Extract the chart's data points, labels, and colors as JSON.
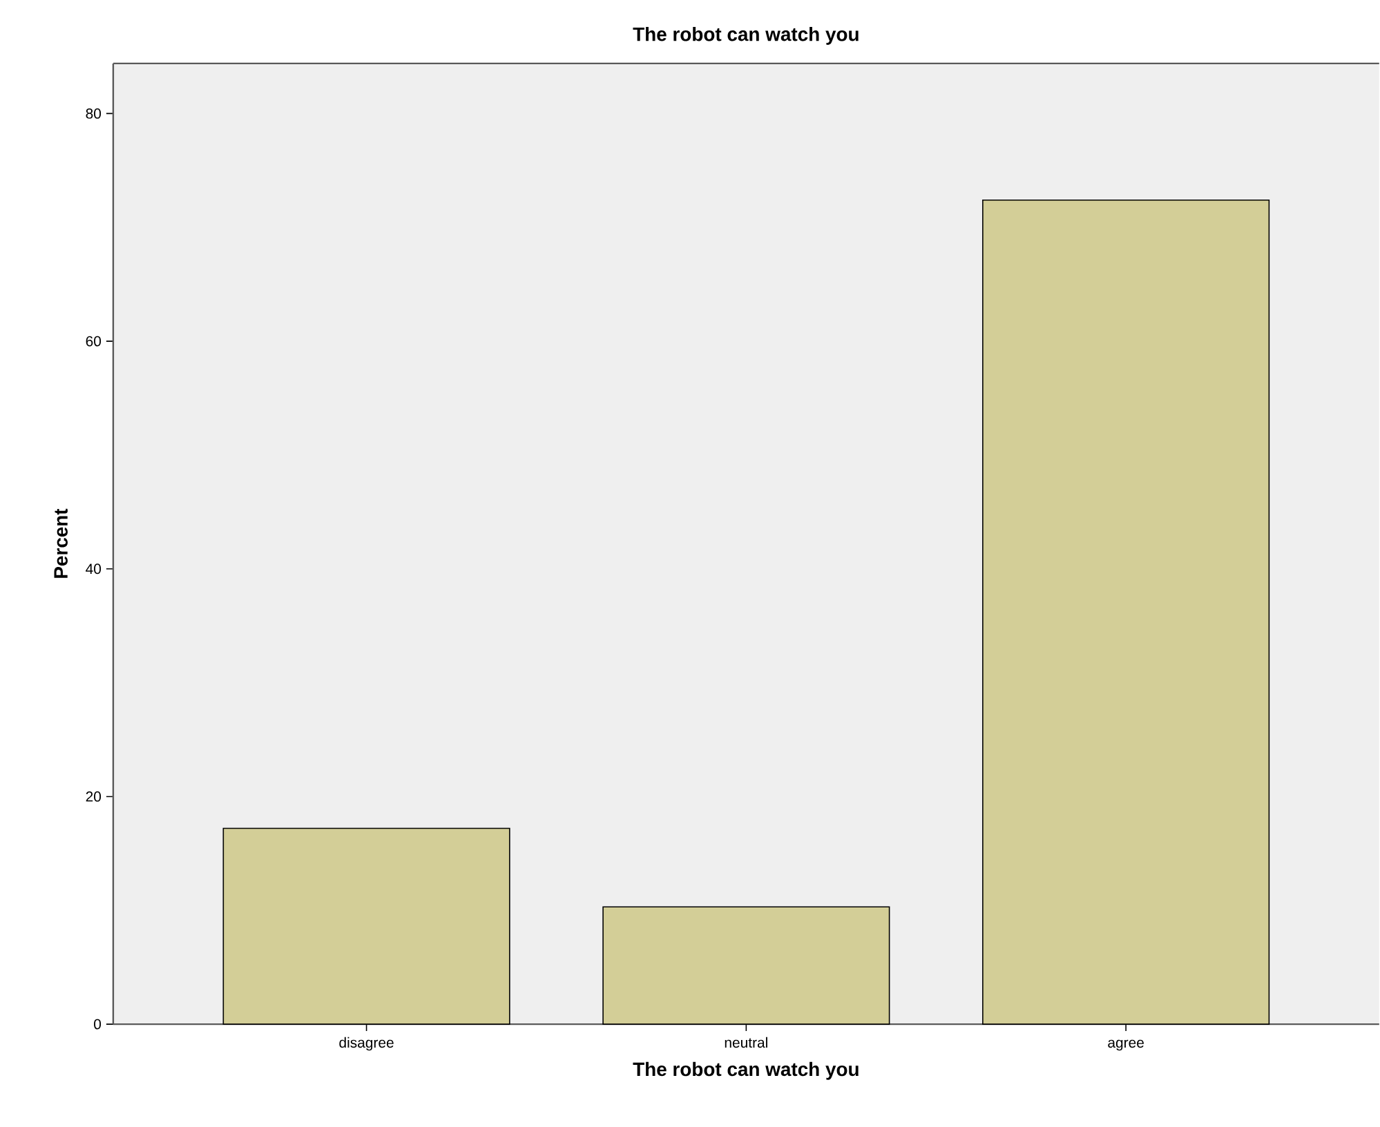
{
  "chart_data": {
    "type": "bar",
    "title": "The robot can watch you",
    "xlabel": "The robot can watch you",
    "ylabel": "Percent",
    "categories": [
      "disagree",
      "neutral",
      "agree"
    ],
    "values": [
      17.2,
      10.3,
      72.4
    ],
    "color": "#d3ce97",
    "ylim": [
      0,
      84.4
    ],
    "yticks": [
      0,
      20,
      40,
      60,
      80
    ]
  }
}
